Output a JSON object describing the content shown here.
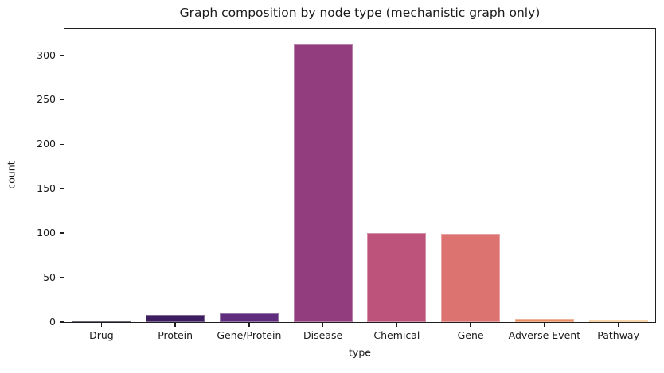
{
  "figure": {
    "title": "Graph composition by node type (mechanistic graph only)",
    "background_color": "#ffffff",
    "text_color": "#1a1a1a",
    "spine_color": "#1f1f1f"
  },
  "chart_data": {
    "type": "bar",
    "title": "Graph composition by node type (mechanistic graph only)",
    "xlabel": "type",
    "ylabel": "count",
    "categories": [
      "Drug",
      "Protein",
      "Gene/Protein",
      "Disease",
      "Chemical",
      "Gene",
      "Adverse Event",
      "Pathway"
    ],
    "values": [
      2,
      8,
      10,
      313,
      100,
      99,
      4,
      3
    ],
    "bar_colors": [
      "#1b1832",
      "#3d1d60",
      "#5f2c7e",
      "#913d7e",
      "#bd537b",
      "#dc7370",
      "#e98e61",
      "#f2bf80"
    ],
    "yticks": [
      0,
      50,
      100,
      150,
      200,
      250,
      300
    ],
    "ylim": [
      0,
      330
    ],
    "bar_width_fraction": 0.8,
    "grid": false,
    "legend": null,
    "orientation": "vertical"
  }
}
